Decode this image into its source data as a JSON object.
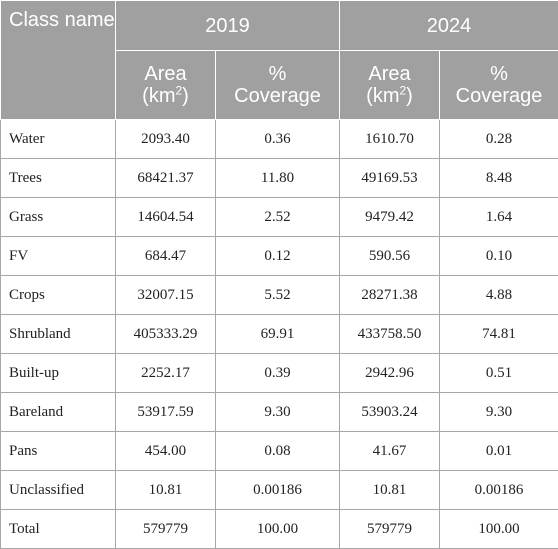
{
  "header": {
    "class_name": "Class name",
    "years": [
      "2019",
      "2024"
    ],
    "area_label": "Area",
    "area_unit_prefix": "(km",
    "area_unit_sup": "2",
    "area_unit_suffix": ")",
    "coverage_line1": "%",
    "coverage_line2": "Coverage"
  },
  "rows": [
    {
      "name": "Water",
      "a2019": "2093.40",
      "c2019": "0.36",
      "a2024": "1610.70",
      "c2024": "0.28"
    },
    {
      "name": "Trees",
      "a2019": "68421.37",
      "c2019": "11.80",
      "a2024": "49169.53",
      "c2024": "8.48"
    },
    {
      "name": "Grass",
      "a2019": "14604.54",
      "c2019": "2.52",
      "a2024": "9479.42",
      "c2024": "1.64"
    },
    {
      "name": "FV",
      "a2019": "684.47",
      "c2019": "0.12",
      "a2024": "590.56",
      "c2024": "0.10"
    },
    {
      "name": "Crops",
      "a2019": "32007.15",
      "c2019": "5.52",
      "a2024": "28271.38",
      "c2024": "4.88"
    },
    {
      "name": "Shrubland",
      "a2019": "405333.29",
      "c2019": "69.91",
      "a2024": "433758.50",
      "c2024": "74.81"
    },
    {
      "name": "Built-up",
      "a2019": "2252.17",
      "c2019": "0.39",
      "a2024": "2942.96",
      "c2024": "0.51"
    },
    {
      "name": "Bareland",
      "a2019": "53917.59",
      "c2019": "9.30",
      "a2024": "53903.24",
      "c2024": "9.30"
    },
    {
      "name": "Pans",
      "a2019": "454.00",
      "c2019": "0.08",
      "a2024": "41.67",
      "c2024": "0.01"
    },
    {
      "name": "Unclassified",
      "a2019": "10.81",
      "c2019": "0.00186",
      "a2024": "10.81",
      "c2024": "0.00186"
    },
    {
      "name": "Total",
      "a2019": "579779",
      "c2019": "100.00",
      "a2024": "579779",
      "c2024": "100.00"
    }
  ]
}
